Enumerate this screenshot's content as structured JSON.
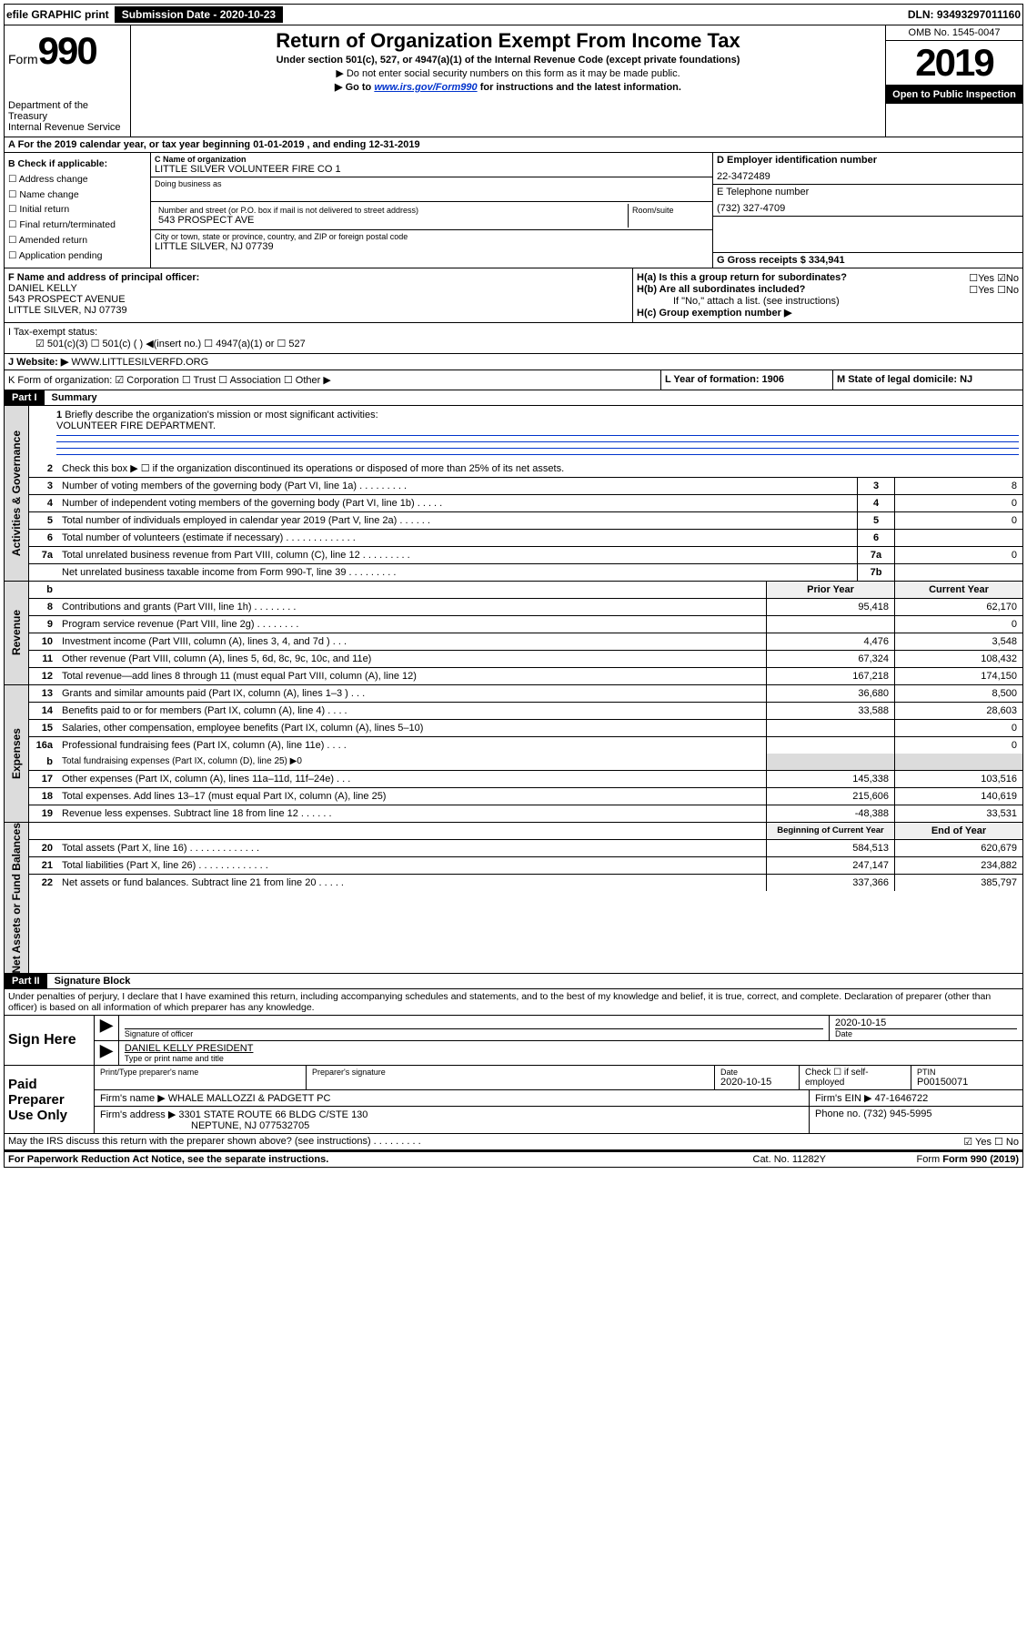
{
  "topbar": {
    "efile": "efile GRAPHIC print",
    "sub_lbl": "Submission Date - 2020-10-23",
    "dln": "DLN: 93493297011160"
  },
  "header": {
    "form": "Form",
    "form_num": "990",
    "dept": "Department of the Treasury",
    "irs": "Internal Revenue Service",
    "title": "Return of Organization Exempt From Income Tax",
    "sub1": "Under section 501(c), 527, or 4947(a)(1) of the Internal Revenue Code (except private foundations)",
    "sub2": "▶ Do not enter social security numbers on this form as it may be made public.",
    "sub3_pre": "▶ Go to ",
    "sub3_link": "www.irs.gov/Form990",
    "sub3_post": " for instructions and the latest information.",
    "omb": "OMB No. 1545-0047",
    "year": "2019",
    "open": "Open to Public Inspection"
  },
  "a_line": "A For the 2019 calendar year, or tax year beginning 01-01-2019     , and ending 12-31-2019",
  "box_b": {
    "hdr": "B Check if applicable:",
    "items": [
      "☐ Address change",
      "☐ Name change",
      "☐ Initial return",
      "☐ Final return/terminated",
      "☐ Amended return",
      "☐ Application pending"
    ]
  },
  "c": {
    "lbl_name": "C Name of organization",
    "name": "LITTLE SILVER VOLUNTEER FIRE CO 1",
    "dba_lbl": "Doing business as",
    "addr_lbl": "Number and street (or P.O. box if mail is not delivered to street address)",
    "addr": "543 PROSPECT AVE",
    "room_lbl": "Room/suite",
    "city_lbl": "City or town, state or province, country, and ZIP or foreign postal code",
    "city": "LITTLE SILVER, NJ  07739"
  },
  "d": {
    "lbl": "D Employer identification number",
    "val": "22-3472489"
  },
  "e": {
    "lbl": "E Telephone number",
    "val": "(732) 327-4709"
  },
  "g": {
    "lbl": "G Gross receipts $ 334,941"
  },
  "f": {
    "lbl": "F  Name and address of principal officer:",
    "name": "DANIEL KELLY",
    "addr1": "543 PROSPECT AVENUE",
    "addr2": "LITTLE SILVER, NJ  07739"
  },
  "h": {
    "ha_lbl": "H(a)  Is this a group return for subordinates?",
    "ha_val": "☐Yes ☑No",
    "hb_lbl": "H(b)  Are all subordinates included?",
    "hb_val": "☐Yes ☐No",
    "hb_note": "If \"No,\" attach a list. (see instructions)",
    "hc_lbl": "H(c)  Group exemption number ▶"
  },
  "i": {
    "lbl": "I    Tax-exempt status:",
    "opts": "☑ 501(c)(3)    ☐  501(c) (   ) ◀(insert no.)      ☐ 4947(a)(1) or  ☐ 527"
  },
  "j": {
    "lbl": "J    Website: ▶",
    "val": "  WWW.LITTLESILVERFD.ORG"
  },
  "k": {
    "lbl": "K Form of organization:  ☑ Corporation ☐ Trust ☐ Association ☐ Other ▶"
  },
  "l": {
    "lbl": "L Year of formation: 1906"
  },
  "m": {
    "lbl": "M State of legal domicile: NJ"
  },
  "parts": {
    "p1": "Part I",
    "p1_title": "Summary",
    "p2": "Part II",
    "p2_title": "Signature Block"
  },
  "summary": {
    "tab1": "Activities & Governance",
    "tab2": "Revenue",
    "tab3": "Expenses",
    "tab4": "Net Assets or Fund Balances",
    "l1_lbl": "Briefly describe the organization's mission or most significant activities:",
    "l1_val": "VOLUNTEER FIRE DEPARTMENT.",
    "l2": "Check this box ▶ ☐  if the organization discontinued its operations or disposed of more than 25% of its net assets.",
    "rows_simple": [
      {
        "n": "3",
        "d": "Number of voting members of the governing body (Part VI, line 1a)  .    .    .    .    .    .    .    .    .",
        "ln": "3",
        "v": "8"
      },
      {
        "n": "4",
        "d": "Number of independent voting members of the governing body (Part VI, line 1b)  .    .    .    .    .",
        "ln": "4",
        "v": "0"
      },
      {
        "n": "5",
        "d": "Total number of individuals employed in calendar year 2019 (Part V, line 2a)  .    .    .    .    .    .",
        "ln": "5",
        "v": "0"
      },
      {
        "n": "6",
        "d": "Total number of volunteers (estimate if necessary)   .    .    .    .    .    .    .    .    .    .    .    .    .",
        "ln": "6",
        "v": ""
      },
      {
        "n": "7a",
        "d": "Total unrelated business revenue from Part VIII, column (C), line 12  .    .    .    .    .    .    .    .    .",
        "ln": "7a",
        "v": "0"
      },
      {
        "n": "",
        "d": "Net unrelated business taxable income from Form 990-T, line 39   .    .    .    .    .    .    .    .    .",
        "ln": "7b",
        "v": ""
      }
    ],
    "hdr_b": "b",
    "hdr_prior": "Prior Year",
    "hdr_curr": "Current Year",
    "rows_fin": [
      {
        "n": "8",
        "d": "Contributions and grants (Part VIII, line 1h)   .    .    .    .    .    .    .    .",
        "p": "95,418",
        "c": "62,170"
      },
      {
        "n": "9",
        "d": "Program service revenue (Part VIII, line 2g)   .    .    .    .    .    .    .    .",
        "p": "",
        "c": "0"
      },
      {
        "n": "10",
        "d": "Investment income (Part VIII, column (A), lines 3, 4, and 7d )   .    .    .",
        "p": "4,476",
        "c": "3,548"
      },
      {
        "n": "11",
        "d": "Other revenue (Part VIII, column (A), lines 5, 6d, 8c, 9c, 10c, and 11e)",
        "p": "67,324",
        "c": "108,432"
      },
      {
        "n": "12",
        "d": "Total revenue—add lines 8 through 11 (must equal Part VIII, column (A), line 12)",
        "p": "167,218",
        "c": "174,150"
      },
      {
        "n": "13",
        "d": "Grants and similar amounts paid (Part IX, column (A), lines 1–3 )   .    .    .",
        "p": "36,680",
        "c": "8,500"
      },
      {
        "n": "14",
        "d": "Benefits paid to or for members (Part IX, column (A), line 4)   .    .    .    .",
        "p": "33,588",
        "c": "28,603"
      },
      {
        "n": "15",
        "d": "Salaries, other compensation, employee benefits (Part IX, column (A), lines 5–10)",
        "p": "",
        "c": "0"
      },
      {
        "n": "16a",
        "d": "Professional fundraising fees (Part IX, column (A), line 11e)   .    .    .    .",
        "p": "",
        "c": "0"
      }
    ],
    "l16b": {
      "n": "b",
      "d": "Total fundraising expenses (Part IX, column (D), line 25) ▶0"
    },
    "rows_fin2": [
      {
        "n": "17",
        "d": "Other expenses (Part IX, column (A), lines 11a–11d, 11f–24e)   .    .    .",
        "p": "145,338",
        "c": "103,516"
      },
      {
        "n": "18",
        "d": "Total expenses. Add lines 13–17 (must equal Part IX, column (A), line 25)",
        "p": "215,606",
        "c": "140,619"
      },
      {
        "n": "19",
        "d": "Revenue less expenses. Subtract line 18 from line 12   .    .    .    .    .    .",
        "p": "-48,388",
        "c": "33,531"
      }
    ],
    "hdr_begin": "Beginning of Current Year",
    "hdr_end": "End of Year",
    "rows_bal": [
      {
        "n": "20",
        "d": "Total assets (Part X, line 16)   .    .    .    .    .    .    .    .    .    .    .    .    .",
        "p": "584,513",
        "c": "620,679"
      },
      {
        "n": "21",
        "d": "Total liabilities (Part X, line 26)   .    .    .    .    .    .    .    .    .    .    .    .    .",
        "p": "247,147",
        "c": "234,882"
      },
      {
        "n": "22",
        "d": "Net assets or fund balances. Subtract line 21 from line 20   .    .    .    .    .",
        "p": "337,366",
        "c": "385,797"
      }
    ]
  },
  "sig": {
    "decl": "Under penalties of perjury, I declare that I have examined this return, including accompanying schedules and statements, and to the best of my knowledge and belief, it is true, correct, and complete. Declaration of preparer (other than officer) is based on all information of which preparer has any knowledge.",
    "sign_here": "Sign Here",
    "sig_officer": "Signature of officer",
    "date": "2020-10-15",
    "date_lbl": "Date",
    "name_title": "DANIEL KELLY PRESIDENT",
    "name_title_lbl": "Type or print name and title",
    "paid": "Paid Preparer Use Only",
    "prep_name_lbl": "Print/Type preparer's name",
    "prep_sig_lbl": "Preparer's signature",
    "prep_date_lbl": "Date",
    "prep_date": "2020-10-15",
    "check_lbl": "Check ☐ if self-employed",
    "ptin_lbl": "PTIN",
    "ptin": "P00150071",
    "firm_name_lbl": "Firm's name      ▶",
    "firm_name": "WHALE MALLOZZI & PADGETT PC",
    "firm_ein_lbl": "Firm's EIN ▶",
    "firm_ein": "47-1646722",
    "firm_addr_lbl": "Firm's address ▶",
    "firm_addr": "3301 STATE ROUTE 66 BLDG C/STE 130",
    "firm_city": "NEPTUNE, NJ  077532705",
    "phone_lbl": "Phone no.",
    "phone": "(732) 945-5995",
    "discuss": "May the IRS discuss this return with the preparer shown above? (see instructions)    .    .    .    .    .    .    .    .    .",
    "discuss_val": "☑ Yes   ☐ No"
  },
  "footer": {
    "notice": "For Paperwork Reduction Act Notice, see the separate instructions.",
    "cat": "Cat. No. 11282Y",
    "form": "Form 990 (2019)"
  }
}
